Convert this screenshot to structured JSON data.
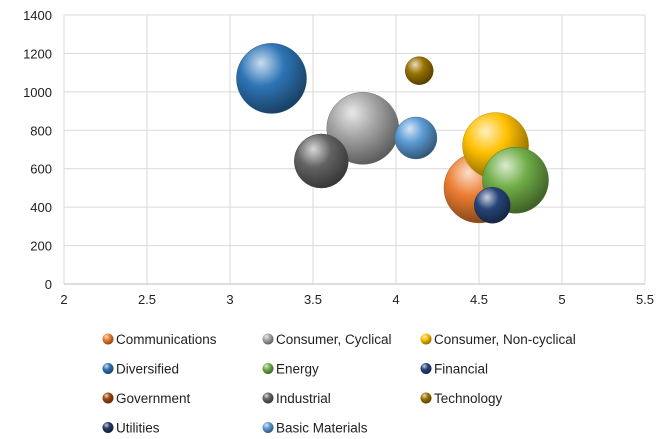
{
  "chart_data": {
    "type": "bubble",
    "title": "",
    "xlabel": "",
    "ylabel": "",
    "xlim": [
      2,
      5.5
    ],
    "ylim": [
      0,
      1400
    ],
    "x_ticks": [
      "2",
      "2.5",
      "3",
      "3.5",
      "4",
      "4.5",
      "5",
      "5.5"
    ],
    "y_ticks": [
      "0",
      "200",
      "400",
      "600",
      "800",
      "1000",
      "1200",
      "1400"
    ],
    "grid": true,
    "legend_position": "bottom",
    "series": [
      {
        "name": "Communications",
        "x": 4.5,
        "y": 500,
        "size": 35,
        "color": "#ED7D31"
      },
      {
        "name": "Consumer, Cyclical",
        "x": 3.8,
        "y": 810,
        "size": 36,
        "color": "#A5A5A5"
      },
      {
        "name": "Consumer, Non-cyclical",
        "x": 4.6,
        "y": 720,
        "size": 33,
        "color": "#FFC000"
      },
      {
        "name": "Diversified",
        "x": 3.25,
        "y": 1070,
        "size": 35,
        "color": "#2E75B6"
      },
      {
        "name": "Energy",
        "x": 4.72,
        "y": 540,
        "size": 33,
        "color": "#70AD47"
      },
      {
        "name": "Financial",
        "x": 4.58,
        "y": 410,
        "size": 18,
        "color": "#264478"
      },
      {
        "name": "Government",
        "x": 4.55,
        "y": 430,
        "size": 0,
        "color": "#9E480E"
      },
      {
        "name": "Industrial",
        "x": 3.55,
        "y": 640,
        "size": 27,
        "color": "#636363"
      },
      {
        "name": "Technology",
        "x": 4.14,
        "y": 1110,
        "size": 14,
        "color": "#997300"
      },
      {
        "name": "Utilities",
        "x": 4.58,
        "y": 410,
        "size": 0,
        "color": "#1F3864"
      },
      {
        "name": "Basic Materials",
        "x": 4.12,
        "y": 760,
        "size": 21,
        "color": "#5B9BD5"
      }
    ]
  }
}
